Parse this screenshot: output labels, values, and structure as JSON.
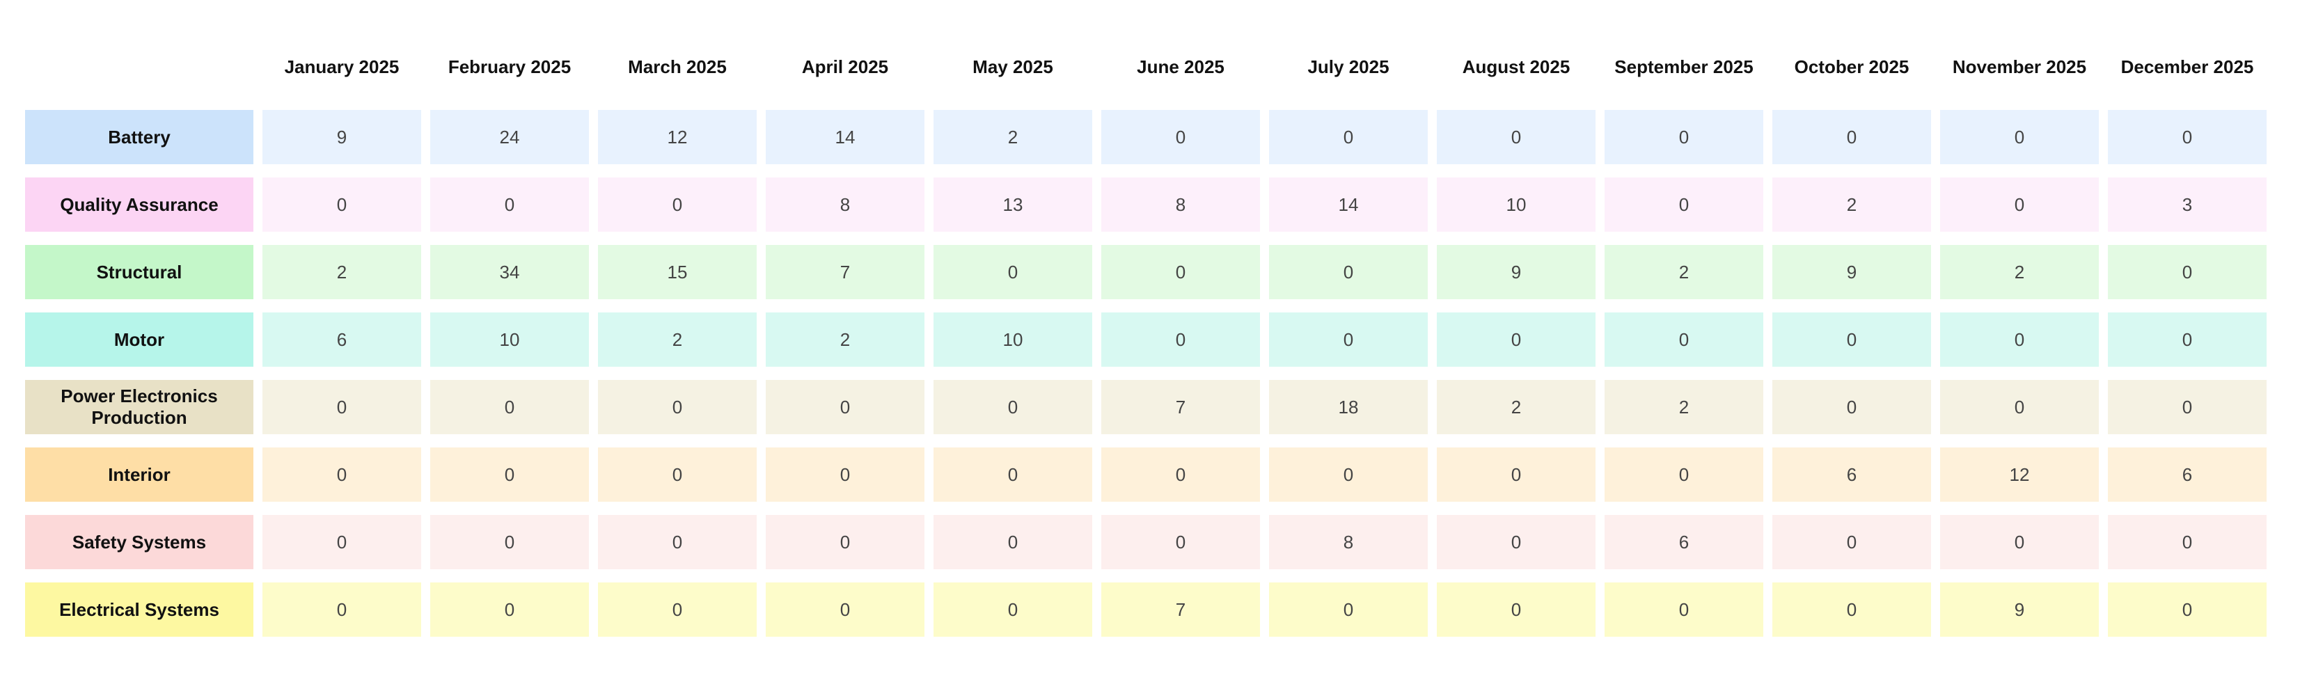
{
  "chart_data": {
    "type": "heatmap",
    "columns": [
      "January 2025",
      "February 2025",
      "March 2025",
      "April 2025",
      "May 2025",
      "June 2025",
      "July 2025",
      "August 2025",
      "September 2025",
      "October 2025",
      "November 2025",
      "December 2025"
    ],
    "rows": [
      {
        "label": "Battery",
        "label_color": "#cce3fb",
        "cell_color": "#e8f2fe",
        "values": [
          9,
          24,
          12,
          14,
          2,
          0,
          0,
          0,
          0,
          0,
          0,
          0
        ]
      },
      {
        "label": "Quality Assurance",
        "label_color": "#fcd5f4",
        "cell_color": "#fdf0fb",
        "values": [
          0,
          0,
          0,
          8,
          13,
          8,
          14,
          10,
          0,
          2,
          0,
          3
        ]
      },
      {
        "label": "Structural",
        "label_color": "#c4f7c9",
        "cell_color": "#e3fae3",
        "values": [
          2,
          34,
          15,
          7,
          0,
          0,
          0,
          9,
          2,
          9,
          2,
          0
        ]
      },
      {
        "label": "Motor",
        "label_color": "#b6f5ea",
        "cell_color": "#d8f9f2",
        "values": [
          6,
          10,
          2,
          2,
          10,
          0,
          0,
          0,
          0,
          0,
          0,
          0
        ]
      },
      {
        "label": "Power Electronics Production",
        "label_color": "#e8e1c6",
        "cell_color": "#f5f2e3",
        "values": [
          0,
          0,
          0,
          0,
          0,
          7,
          18,
          2,
          2,
          0,
          0,
          0
        ]
      },
      {
        "label": "Interior",
        "label_color": "#fedea6",
        "cell_color": "#fef1da",
        "values": [
          0,
          0,
          0,
          0,
          0,
          0,
          0,
          0,
          0,
          6,
          12,
          6
        ]
      },
      {
        "label": "Safety Systems",
        "label_color": "#fcd9d9",
        "cell_color": "#fdefee",
        "values": [
          0,
          0,
          0,
          0,
          0,
          0,
          8,
          0,
          6,
          0,
          0,
          0
        ]
      },
      {
        "label": "Electrical Systems",
        "label_color": "#fdf8a1",
        "cell_color": "#fdfcca",
        "values": [
          0,
          0,
          0,
          0,
          0,
          7,
          0,
          0,
          0,
          0,
          9,
          0
        ]
      }
    ]
  }
}
